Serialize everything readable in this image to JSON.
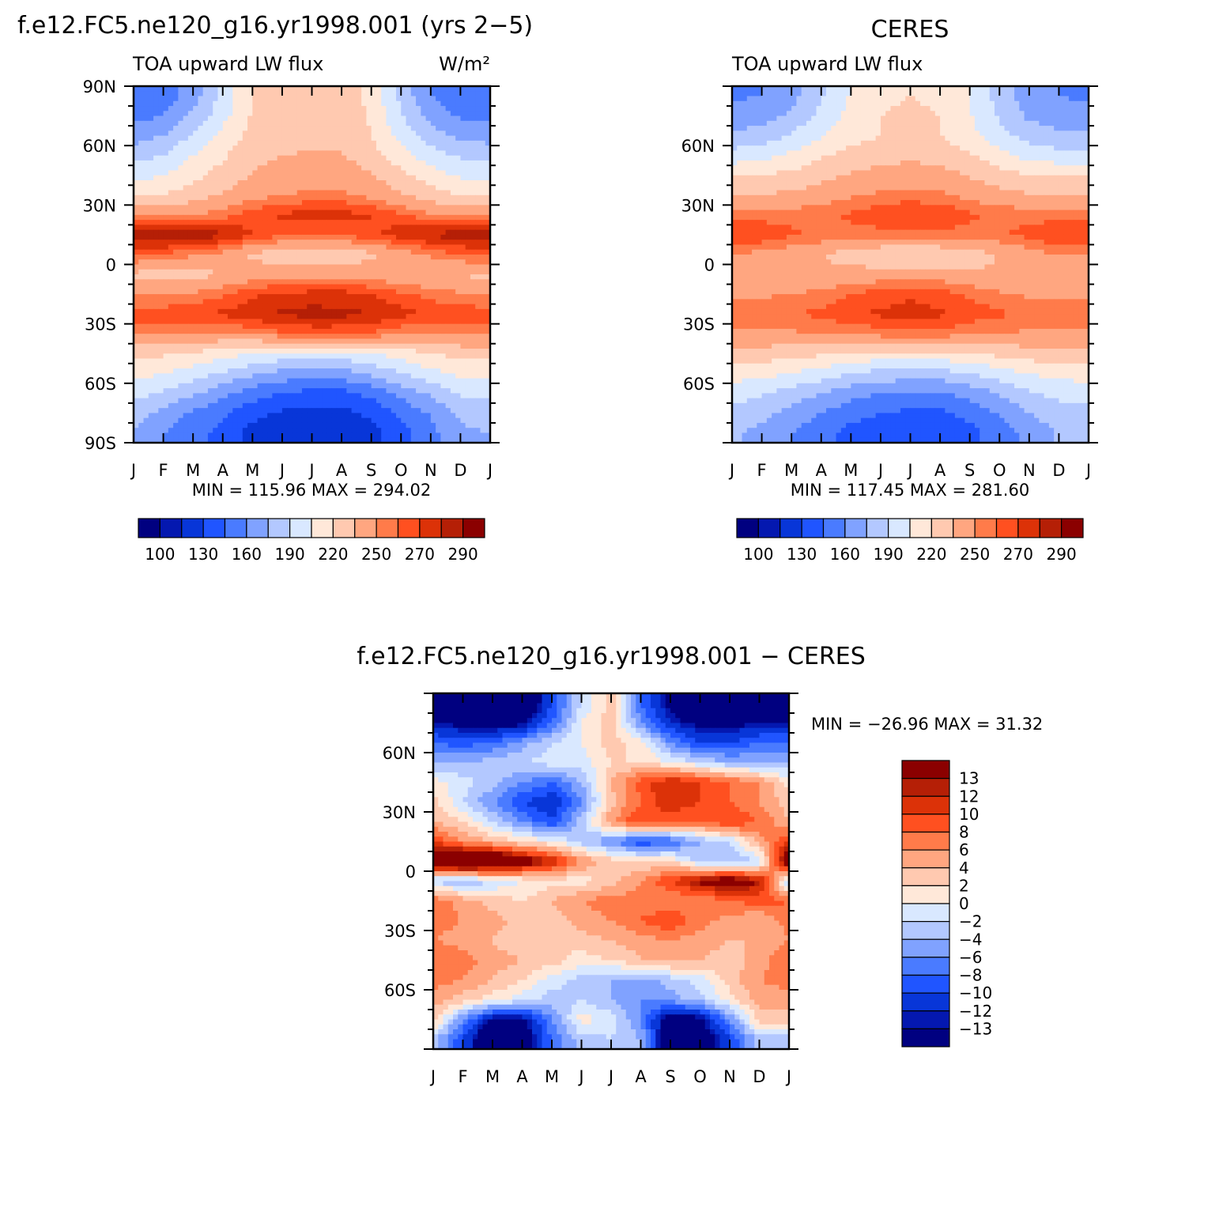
{
  "figure": {
    "colors": {
      "absolute_fill": [
        "#000080",
        "#0418b0",
        "#0836d8",
        "#2055ff",
        "#4a7bff",
        "#80a2ff",
        "#b3c8ff",
        "#d9e8ff",
        "#ffe8d9",
        "#ffc9b0",
        "#ffa680",
        "#ff7b4a",
        "#ff5020",
        "#dc3208",
        "#b51f06",
        "#8b0000"
      ],
      "difference_fill": [
        "#000080",
        "#0418b0",
        "#0836d8",
        "#2055ff",
        "#4a7bff",
        "#80a2ff",
        "#b3c8ff",
        "#d9e8ff",
        "#ffe8d9",
        "#ffc9b0",
        "#ffa680",
        "#ff7b4a",
        "#ff5020",
        "#dc3208",
        "#b51f06",
        "#8b0000"
      ]
    }
  },
  "chart_data": [
    {
      "id": "model",
      "type": "heatmap",
      "title": "f.e12.FC5.ne120_g16.yr1998.001 (yrs 2−5)",
      "left_string": "TOA upward LW flux",
      "right_string": "W/m²",
      "x_tick_labels": [
        "J",
        "F",
        "M",
        "A",
        "M",
        "J",
        "J",
        "A",
        "S",
        "O",
        "N",
        "D",
        "J"
      ],
      "y_tick_labels": [
        "90N",
        "60N",
        "30N",
        "0",
        "30S",
        "60S",
        "90S"
      ],
      "xlim": [
        0,
        12
      ],
      "ylim": [
        -90,
        90
      ],
      "stats": "MIN = 115.96 MAX = 294.02",
      "colorbar": {
        "levels": [
          100,
          110,
          120,
          130,
          140,
          150,
          160,
          170,
          180,
          190,
          200,
          210,
          220,
          230,
          240,
          250,
          260,
          270,
          280,
          290
        ],
        "labels": [
          "100",
          "130",
          "160",
          "190",
          "220",
          "250",
          "270",
          "290"
        ],
        "label_index": [
          0,
          2,
          4,
          6,
          8,
          10,
          12,
          14
        ]
      },
      "grid": {
        "lat": [
          -85,
          -75,
          -65,
          -55,
          -45,
          -35,
          -25,
          -15,
          -5,
          5,
          15,
          25,
          35,
          45,
          55,
          65,
          75,
          85
        ],
        "month": [
          0,
          1,
          2,
          3,
          4,
          5,
          6,
          7,
          8,
          9,
          10,
          11,
          12
        ],
        "values": [
          [
            175,
            160,
            150,
            140,
            125,
            120,
            118,
            118,
            125,
            140,
            155,
            172,
            175
          ],
          [
            182,
            170,
            158,
            148,
            135,
            128,
            125,
            125,
            133,
            148,
            162,
            178,
            182
          ],
          [
            195,
            188,
            178,
            165,
            152,
            145,
            140,
            140,
            150,
            165,
            178,
            192,
            195
          ],
          [
            210,
            205,
            198,
            188,
            178,
            170,
            168,
            168,
            178,
            190,
            200,
            208,
            210
          ],
          [
            225,
            222,
            218,
            212,
            205,
            200,
            198,
            198,
            205,
            212,
            220,
            225,
            225
          ],
          [
            252,
            250,
            248,
            248,
            252,
            258,
            262,
            262,
            258,
            252,
            250,
            252,
            252
          ],
          [
            265,
            266,
            270,
            272,
            278,
            282,
            284,
            283,
            280,
            274,
            268,
            266,
            265
          ],
          [
            250,
            248,
            252,
            258,
            268,
            272,
            274,
            274,
            270,
            262,
            256,
            252,
            250
          ],
          [
            232,
            228,
            230,
            235,
            242,
            245,
            245,
            245,
            242,
            238,
            235,
            233,
            232
          ],
          [
            262,
            258,
            252,
            245,
            232,
            226,
            224,
            226,
            232,
            242,
            252,
            260,
            262
          ],
          [
            288,
            292,
            290,
            282,
            270,
            262,
            258,
            260,
            268,
            276,
            282,
            286,
            288
          ],
          [
            248,
            248,
            250,
            256,
            266,
            272,
            275,
            275,
            270,
            262,
            252,
            248,
            248
          ],
          [
            218,
            220,
            228,
            236,
            245,
            250,
            252,
            252,
            246,
            236,
            226,
            220,
            218
          ],
          [
            200,
            205,
            215,
            226,
            236,
            242,
            244,
            244,
            236,
            224,
            212,
            203,
            200
          ],
          [
            185,
            190,
            205,
            218,
            230,
            235,
            236,
            236,
            226,
            212,
            196,
            188,
            185
          ],
          [
            168,
            175,
            192,
            210,
            225,
            232,
            232,
            232,
            220,
            200,
            182,
            172,
            168
          ],
          [
            155,
            160,
            178,
            200,
            222,
            230,
            231,
            231,
            218,
            192,
            170,
            158,
            155
          ],
          [
            145,
            150,
            168,
            195,
            220,
            228,
            230,
            230,
            215,
            185,
            160,
            148,
            145
          ]
        ]
      }
    },
    {
      "id": "obs",
      "type": "heatmap",
      "title": "CERES",
      "left_string": "TOA upward LW flux",
      "x_tick_labels": [
        "J",
        "F",
        "M",
        "A",
        "M",
        "J",
        "J",
        "A",
        "S",
        "O",
        "N",
        "D",
        "J"
      ],
      "y_tick_labels": [
        "60N",
        "30N",
        "0",
        "30S",
        "60S"
      ],
      "xlim": [
        0,
        12
      ],
      "ylim": [
        -90,
        90
      ],
      "stats": "MIN = 117.45 MAX = 281.60",
      "colorbar": {
        "levels": [
          100,
          110,
          120,
          130,
          140,
          150,
          160,
          170,
          180,
          190,
          200,
          210,
          220,
          230,
          240,
          250,
          260,
          270,
          280,
          290
        ],
        "labels": [
          "100",
          "130",
          "160",
          "190",
          "220",
          "250",
          "270",
          "290"
        ],
        "label_index": [
          0,
          2,
          4,
          6,
          8,
          10,
          12,
          14
        ]
      },
      "grid": {
        "lat": [
          -85,
          -75,
          -65,
          -55,
          -45,
          -35,
          -25,
          -15,
          -5,
          5,
          15,
          25,
          35,
          45,
          55,
          65,
          75,
          85
        ],
        "month": [
          0,
          1,
          2,
          3,
          4,
          5,
          6,
          7,
          8,
          9,
          10,
          11,
          12
        ],
        "values": [
          [
            178,
            170,
            160,
            150,
            140,
            135,
            132,
            132,
            140,
            152,
            165,
            176,
            178
          ],
          [
            186,
            180,
            170,
            160,
            150,
            145,
            142,
            142,
            150,
            162,
            175,
            184,
            186
          ],
          [
            196,
            192,
            184,
            175,
            166,
            160,
            158,
            158,
            165,
            176,
            188,
            194,
            196
          ],
          [
            212,
            210,
            205,
            198,
            190,
            185,
            184,
            184,
            190,
            198,
            206,
            210,
            212
          ],
          [
            230,
            228,
            226,
            222,
            218,
            215,
            215,
            215,
            218,
            224,
            228,
            230,
            230
          ],
          [
            248,
            248,
            248,
            250,
            252,
            255,
            256,
            256,
            252,
            250,
            248,
            248,
            248
          ],
          [
            258,
            258,
            260,
            262,
            268,
            272,
            274,
            272,
            266,
            262,
            258,
            258,
            258
          ],
          [
            248,
            248,
            250,
            254,
            260,
            265,
            268,
            265,
            258,
            252,
            248,
            248,
            248
          ],
          [
            238,
            236,
            236,
            238,
            240,
            242,
            242,
            242,
            238,
            236,
            236,
            238,
            238
          ],
          [
            250,
            246,
            242,
            236,
            228,
            222,
            220,
            222,
            228,
            236,
            244,
            250,
            250
          ],
          [
            272,
            268,
            262,
            258,
            256,
            256,
            256,
            256,
            256,
            258,
            264,
            270,
            272
          ],
          [
            256,
            256,
            256,
            258,
            262,
            268,
            272,
            270,
            262,
            258,
            256,
            256,
            256
          ],
          [
            234,
            236,
            238,
            242,
            248,
            252,
            254,
            252,
            246,
            240,
            236,
            234,
            234
          ],
          [
            218,
            220,
            224,
            230,
            236,
            240,
            242,
            240,
            234,
            226,
            220,
            218,
            218
          ],
          [
            196,
            200,
            208,
            218,
            226,
            230,
            232,
            230,
            222,
            210,
            200,
            196,
            196
          ],
          [
            178,
            182,
            192,
            204,
            214,
            220,
            222,
            220,
            210,
            196,
            184,
            178,
            178
          ],
          [
            164,
            168,
            178,
            194,
            210,
            220,
            222,
            220,
            206,
            188,
            172,
            166,
            164
          ],
          [
            158,
            160,
            170,
            188,
            206,
            218,
            220,
            218,
            204,
            184,
            166,
            160,
            158
          ]
        ]
      }
    },
    {
      "id": "diff",
      "type": "heatmap",
      "title": "f.e12.FC5.ne120_g16.yr1998.001 − CERES",
      "x_tick_labels": [
        "J",
        "F",
        "M",
        "A",
        "M",
        "J",
        "J",
        "A",
        "S",
        "O",
        "N",
        "D",
        "J"
      ],
      "y_tick_labels": [
        "60N",
        "30N",
        "0",
        "30S",
        "60S"
      ],
      "xlim": [
        0,
        12
      ],
      "ylim": [
        -90,
        90
      ],
      "stats": "MIN = −26.96 MAX =  31.32",
      "colorbar": {
        "levels": [
          -13,
          -12,
          -10,
          -8,
          -6,
          -4,
          -2,
          0,
          2,
          4,
          6,
          8,
          10,
          12,
          13
        ],
        "labels": [
          "13",
          "12",
          "10",
          "8",
          "6",
          "4",
          "2",
          "0",
          "−2",
          "−4",
          "−6",
          "−8",
          "−10",
          "−12",
          "−13"
        ]
      },
      "grid": {
        "lat": [
          -85,
          -75,
          -65,
          -55,
          -45,
          -35,
          -25,
          -15,
          -5,
          5,
          15,
          25,
          35,
          45,
          55,
          65,
          75,
          85
        ],
        "month": [
          0,
          1,
          2,
          3,
          4,
          5,
          6,
          7,
          8,
          9,
          10,
          11,
          12
        ],
        "values": [
          [
            -3,
            -10,
            -18,
            -16,
            -8,
            -3,
            -2,
            -4,
            -18,
            -16,
            -10,
            -3,
            -3
          ],
          [
            3,
            -6,
            -14,
            -14,
            -6,
            1,
            -1,
            -6,
            -16,
            -14,
            -6,
            3,
            3
          ],
          [
            5,
            3,
            1,
            -1,
            -3,
            -2,
            -4,
            -6,
            -5,
            -3,
            1,
            5,
            5
          ],
          [
            7,
            6,
            4,
            2,
            -1,
            -3,
            -4,
            -5,
            -3,
            -1,
            3,
            6,
            7
          ],
          [
            8,
            7,
            5,
            4,
            3,
            1,
            2,
            4,
            5,
            4,
            3,
            5,
            8
          ],
          [
            6,
            5,
            4,
            2,
            2,
            3,
            4,
            5,
            6,
            5,
            4,
            4,
            6
          ],
          [
            7,
            6,
            5,
            3,
            3,
            5,
            6,
            8,
            10,
            7,
            5,
            4,
            7
          ],
          [
            8,
            5,
            3,
            2,
            4,
            6,
            7,
            7,
            6,
            6,
            8,
            9,
            8
          ],
          [
            -3,
            -4,
            -2,
            0,
            1,
            1,
            3,
            6,
            10,
            14,
            16,
            13,
            -3
          ],
          [
            18,
            22,
            20,
            16,
            12,
            6,
            3,
            2,
            2,
            -3,
            -4,
            -2,
            18
          ],
          [
            10,
            6,
            4,
            2,
            0,
            -3,
            -6,
            -10,
            -8,
            -4,
            -2,
            5,
            10
          ],
          [
            4,
            2,
            -2,
            -6,
            -10,
            -3,
            6,
            10,
            8,
            8,
            10,
            8,
            4
          ],
          [
            3,
            -2,
            -6,
            -10,
            -12,
            -6,
            3,
            8,
            12,
            10,
            8,
            6,
            3
          ],
          [
            1,
            -1,
            -3,
            -6,
            -8,
            -4,
            4,
            9,
            12,
            10,
            8,
            6,
            1
          ],
          [
            -4,
            -4,
            -3,
            -2,
            -1,
            -1,
            2,
            2,
            0,
            -2,
            -4,
            -4,
            -4
          ],
          [
            -8,
            -9,
            -8,
            -5,
            -2,
            0,
            3,
            1,
            -6,
            -10,
            -10,
            -8,
            -8
          ],
          [
            -13,
            -14,
            -15,
            -14,
            -8,
            0,
            3,
            -6,
            -12,
            -14,
            -14,
            -13,
            -13
          ],
          [
            -16,
            -18,
            -20,
            -18,
            -10,
            -2,
            3,
            -8,
            -14,
            -18,
            -18,
            -16,
            -16
          ]
        ]
      }
    }
  ]
}
